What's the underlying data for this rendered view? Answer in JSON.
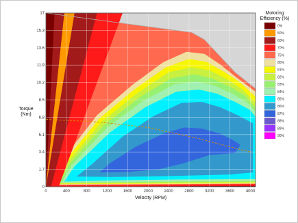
{
  "chart_data": {
    "type": "heatmap",
    "xlabel": "Velocity (RPM)",
    "ylabel": "Torque (Nm)",
    "xlim": [
      0,
      4100
    ],
    "ylim": [
      0,
      17
    ],
    "x_ticks": [
      "0",
      "400",
      "800",
      "1200",
      "1600",
      "2000",
      "2400",
      "2800",
      "3200",
      "3600",
      "4000"
    ],
    "y_ticks": [
      "0",
      "1.7",
      "3.4",
      "5.1",
      "6.8",
      "8.5",
      "10.2",
      "11.9",
      "13.6",
      "15.3",
      "17"
    ],
    "grid": true,
    "legend": {
      "title_line1": "Motoring",
      "title_line2": "Efficiency (%)",
      "placement": "right",
      "entries": [
        {
          "label": "0%",
          "color": "#7a0000"
        },
        {
          "label": "50%",
          "color": "#ff9900"
        },
        {
          "label": "60%",
          "color": "#a31a1a"
        },
        {
          "label": "70%",
          "color": "#ff1a1a"
        },
        {
          "label": "75%",
          "color": "#ff6a4f"
        },
        {
          "label": "80%",
          "color": "#f0e0a0"
        },
        {
          "label": "81%",
          "color": "#f6f600"
        },
        {
          "label": "82%",
          "color": "#c8f040"
        },
        {
          "label": "83%",
          "color": "#98f070"
        },
        {
          "label": "84%",
          "color": "#a0f0b0"
        },
        {
          "label": "85%",
          "color": "#00f0ff"
        },
        {
          "label": "86%",
          "color": "#3399cc"
        },
        {
          "label": "87%",
          "color": "#3366dd"
        },
        {
          "label": "88%",
          "color": "#6a5acd"
        },
        {
          "label": "89%",
          "color": "#9933ff"
        },
        {
          "label": "90%",
          "color": "#ff00ff"
        }
      ]
    },
    "torque_speed_envelope": [
      {
        "rpm": 0,
        "torque": 17
      },
      {
        "rpm": 2850,
        "torque": 15.1
      },
      {
        "rpm": 3100,
        "torque": 14.4
      },
      {
        "rpm": 3400,
        "torque": 12.8
      },
      {
        "rpm": 3700,
        "torque": 11.2
      },
      {
        "rpm": 4100,
        "torque": 9.6
      }
    ],
    "dashed_curve": [
      {
        "rpm": 0,
        "torque": 6.6
      },
      {
        "rpm": 1000,
        "torque": 6.35
      },
      {
        "rpm": 2000,
        "torque": 5.8
      },
      {
        "rpm": 3000,
        "torque": 4.7
      },
      {
        "rpm": 3600,
        "torque": 3.9
      },
      {
        "rpm": 4000,
        "torque": 3.4
      }
    ],
    "line_color": "#d98f00"
  }
}
